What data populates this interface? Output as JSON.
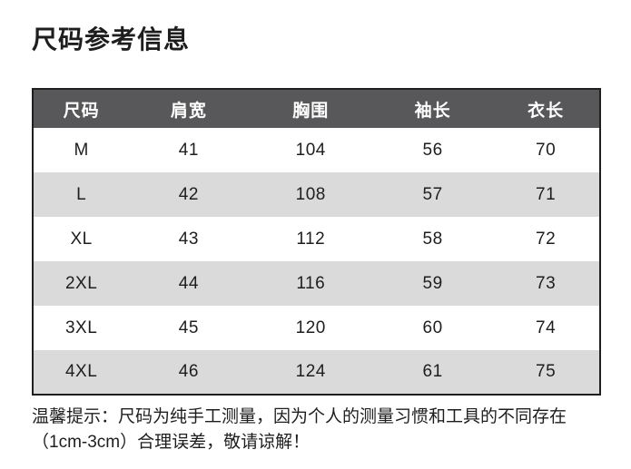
{
  "page": {
    "title": "尺码参考信息"
  },
  "table": {
    "columns": [
      "尺码",
      "肩宽",
      "胸围",
      "袖长",
      "衣长"
    ],
    "rows": [
      [
        "M",
        "41",
        "104",
        "56",
        "70"
      ],
      [
        "L",
        "42",
        "108",
        "57",
        "71"
      ],
      [
        "XL",
        "43",
        "112",
        "58",
        "72"
      ],
      [
        "2XL",
        "44",
        "116",
        "59",
        "73"
      ],
      [
        "3XL",
        "45",
        "120",
        "60",
        "74"
      ],
      [
        "4XL",
        "46",
        "124",
        "61",
        "75"
      ]
    ]
  },
  "note": {
    "line1": "温馨提示：尺码为纯手工测量，因为个人的测量习惯和工具的不同存在",
    "line2": "（1cm-3cm）合理误差，敬请谅解！"
  },
  "colors": {
    "header_bg": "#58585a",
    "header_text": "#ffffff",
    "row_alt_bg": "#dadada",
    "border": "#1f1f1f",
    "text": "#1e1e1e"
  }
}
